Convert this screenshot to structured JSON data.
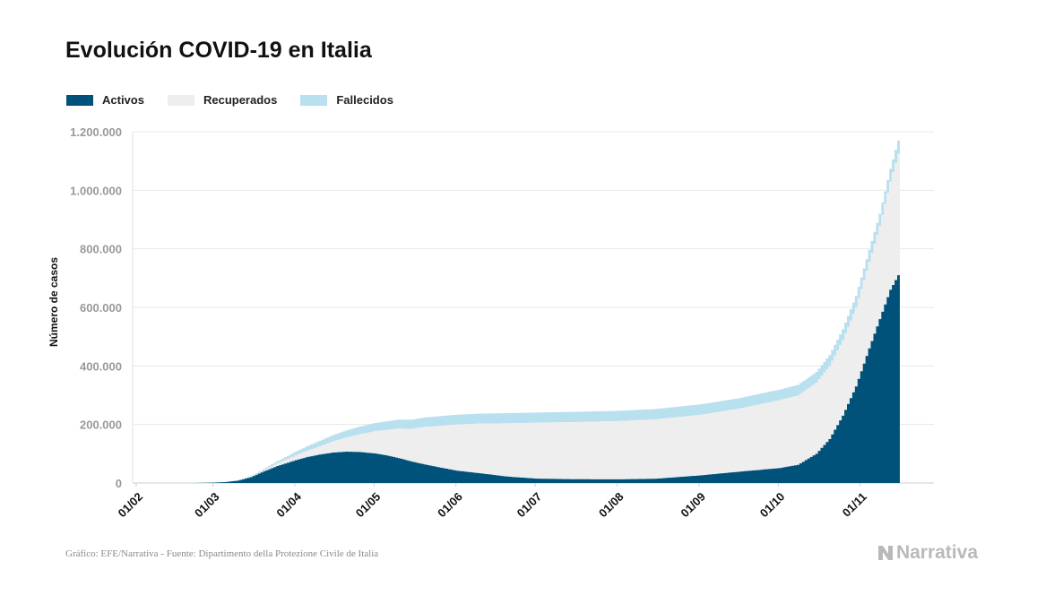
{
  "chart_data": {
    "type": "area",
    "stacked": true,
    "title": "Evolución COVID-19 en Italia",
    "ylabel": "Número de casos",
    "xlabel": "",
    "ylim": [
      0,
      1200000
    ],
    "yticks": [
      0,
      200000,
      400000,
      600000,
      800000,
      1000000,
      1200000
    ],
    "ytick_labels": [
      "0",
      "200.000",
      "400.000",
      "600.000",
      "800.000",
      "1.000.000",
      "1.200.000"
    ],
    "x_tick_labels": [
      "01/02",
      "01/03",
      "01/04",
      "01/05",
      "01/06",
      "01/07",
      "01/08",
      "01/09",
      "01/10",
      "01/11"
    ],
    "x_tick_dates": [
      "2020-02-01",
      "2020-03-01",
      "2020-04-01",
      "2020-05-01",
      "2020-06-01",
      "2020-07-01",
      "2020-08-01",
      "2020-09-01",
      "2020-10-01",
      "2020-11-01"
    ],
    "x_start": "2020-02-01",
    "x_end": "2020-11-15",
    "grid": true,
    "legend_position": "top-left",
    "series": [
      {
        "name": "Activos",
        "color": "#00527a",
        "points": [
          [
            "2020-02-01",
            0
          ],
          [
            "2020-02-24",
            200
          ],
          [
            "2020-03-01",
            1500
          ],
          [
            "2020-03-05",
            3000
          ],
          [
            "2020-03-10",
            8000
          ],
          [
            "2020-03-15",
            20000
          ],
          [
            "2020-03-20",
            40000
          ],
          [
            "2020-03-25",
            58000
          ],
          [
            "2020-04-01",
            78000
          ],
          [
            "2020-04-05",
            88000
          ],
          [
            "2020-04-10",
            97000
          ],
          [
            "2020-04-15",
            104000
          ],
          [
            "2020-04-20",
            107000
          ],
          [
            "2020-04-25",
            106000
          ],
          [
            "2020-05-01",
            101000
          ],
          [
            "2020-05-05",
            95000
          ],
          [
            "2020-05-10",
            85000
          ],
          [
            "2020-05-15",
            73000
          ],
          [
            "2020-05-20",
            63000
          ],
          [
            "2020-05-25",
            54000
          ],
          [
            "2020-06-01",
            42000
          ],
          [
            "2020-06-10",
            33000
          ],
          [
            "2020-06-20",
            22000
          ],
          [
            "2020-07-01",
            15000
          ],
          [
            "2020-07-15",
            13000
          ],
          [
            "2020-08-01",
            12500
          ],
          [
            "2020-08-15",
            14500
          ],
          [
            "2020-09-01",
            26000
          ],
          [
            "2020-09-15",
            38000
          ],
          [
            "2020-10-01",
            51000
          ],
          [
            "2020-10-08",
            62000
          ],
          [
            "2020-10-15",
            100000
          ],
          [
            "2020-10-20",
            150000
          ],
          [
            "2020-10-25",
            230000
          ],
          [
            "2020-10-30",
            330000
          ],
          [
            "2020-11-04",
            460000
          ],
          [
            "2020-11-08",
            560000
          ],
          [
            "2020-11-12",
            660000
          ],
          [
            "2020-11-15",
            710000
          ]
        ]
      },
      {
        "name": "Recuperados",
        "color": "#eeeeee",
        "points": [
          [
            "2020-02-01",
            0
          ],
          [
            "2020-03-01",
            0
          ],
          [
            "2020-03-05",
            500
          ],
          [
            "2020-03-10",
            1000
          ],
          [
            "2020-03-15",
            2500
          ],
          [
            "2020-03-20",
            5000
          ],
          [
            "2020-03-25",
            9000
          ],
          [
            "2020-04-01",
            16000
          ],
          [
            "2020-04-05",
            21000
          ],
          [
            "2020-04-10",
            28000
          ],
          [
            "2020-04-15",
            38000
          ],
          [
            "2020-04-20",
            48000
          ],
          [
            "2020-04-25",
            60000
          ],
          [
            "2020-05-01",
            76000
          ],
          [
            "2020-05-05",
            86000
          ],
          [
            "2020-05-10",
            101000
          ],
          [
            "2020-05-15",
            112000
          ],
          [
            "2020-05-20",
            129000
          ],
          [
            "2020-05-25",
            141000
          ],
          [
            "2020-06-01",
            158000
          ],
          [
            "2020-06-10",
            170000
          ],
          [
            "2020-06-20",
            182000
          ],
          [
            "2020-07-01",
            191000
          ],
          [
            "2020-07-15",
            195000
          ],
          [
            "2020-08-01",
            199000
          ],
          [
            "2020-08-15",
            203000
          ],
          [
            "2020-09-01",
            207000
          ],
          [
            "2020-09-15",
            215000
          ],
          [
            "2020-10-01",
            232000
          ],
          [
            "2020-10-08",
            237000
          ],
          [
            "2020-10-15",
            243000
          ],
          [
            "2020-10-20",
            250000
          ],
          [
            "2020-10-25",
            258000
          ],
          [
            "2020-10-30",
            270000
          ],
          [
            "2020-11-04",
            296000
          ],
          [
            "2020-11-08",
            318000
          ],
          [
            "2020-11-12",
            370000
          ],
          [
            "2020-11-15",
            415000
          ]
        ]
      },
      {
        "name": "Fallecidos",
        "color": "#b8e0ef",
        "points": [
          [
            "2020-02-01",
            0
          ],
          [
            "2020-02-25",
            10
          ],
          [
            "2020-03-01",
            30
          ],
          [
            "2020-03-05",
            150
          ],
          [
            "2020-03-10",
            600
          ],
          [
            "2020-03-15",
            1800
          ],
          [
            "2020-03-20",
            4000
          ],
          [
            "2020-03-25",
            7500
          ],
          [
            "2020-04-01",
            13000
          ],
          [
            "2020-04-05",
            15800
          ],
          [
            "2020-04-10",
            18900
          ],
          [
            "2020-04-15",
            21600
          ],
          [
            "2020-04-20",
            24100
          ],
          [
            "2020-04-25",
            26300
          ],
          [
            "2020-05-01",
            28200
          ],
          [
            "2020-05-05",
            29300
          ],
          [
            "2020-05-10",
            30500
          ],
          [
            "2020-05-15",
            31600
          ],
          [
            "2020-05-20",
            32300
          ],
          [
            "2020-05-25",
            32900
          ],
          [
            "2020-06-01",
            33400
          ],
          [
            "2020-06-10",
            34100
          ],
          [
            "2020-06-20",
            34600
          ],
          [
            "2020-07-01",
            34800
          ],
          [
            "2020-07-15",
            35000
          ],
          [
            "2020-08-01",
            35150
          ],
          [
            "2020-08-15",
            35250
          ],
          [
            "2020-09-01",
            35480
          ],
          [
            "2020-09-15",
            35650
          ],
          [
            "2020-10-01",
            35900
          ],
          [
            "2020-10-08",
            36100
          ],
          [
            "2020-10-15",
            36400
          ],
          [
            "2020-10-20",
            36900
          ],
          [
            "2020-10-25",
            37500
          ],
          [
            "2020-10-30",
            38600
          ],
          [
            "2020-11-04",
            40200
          ],
          [
            "2020-11-08",
            41600
          ],
          [
            "2020-11-12",
            43500
          ],
          [
            "2020-11-15",
            45000
          ]
        ]
      }
    ]
  },
  "footer": {
    "source": "Gráfico: EFE/Narrativa - Fuente: Dipartimento della Protezione Civile de Italia",
    "brand": "Narrativa"
  },
  "colors": {
    "activos": "#00527a",
    "recuperados": "#eeeeee",
    "fallecidos": "#b8e0ef",
    "grid": "#e8e8e8",
    "tick_label": "#999999"
  }
}
